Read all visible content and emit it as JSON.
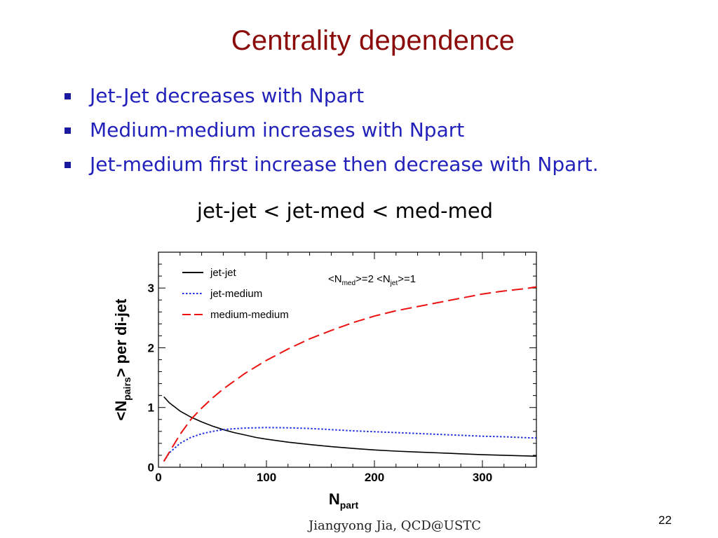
{
  "slide": {
    "title": "Centrality dependence",
    "bullets": [
      "Jet-Jet decreases with Npart",
      "Medium-medium increases with Npart",
      "Jet-medium first increase then decrease with Npart."
    ],
    "relation": "jet-jet < jet-med < med-med",
    "footer": "Jiangyong Jia,  QCD@USTC",
    "page_number": "22"
  },
  "chart_data": {
    "type": "line",
    "xlabel": "N",
    "xlabel_sub": "part",
    "ylabel": "<N",
    "ylabel_sub": "pairs",
    "ylabel_rest": "> per di-jet",
    "annotation": {
      "part1": "<N",
      "sub1": "med",
      "part2": ">=2  <N",
      "sub2": "jet",
      "part3": ">=1"
    },
    "xlim": [
      0,
      350
    ],
    "ylim": [
      0,
      3.6
    ],
    "xticks": [
      0,
      100,
      200,
      300
    ],
    "yticks": [
      0,
      1,
      2,
      3
    ],
    "grid": false,
    "legend": "top-left",
    "series": [
      {
        "name": "jet-jet",
        "color": "#000000",
        "style": "solid",
        "x": [
          5,
          10,
          20,
          30,
          40,
          50,
          60,
          70,
          80,
          90,
          100,
          120,
          140,
          160,
          180,
          200,
          220,
          240,
          260,
          280,
          300,
          320,
          340,
          350
        ],
        "y": [
          1.18,
          1.08,
          0.94,
          0.84,
          0.76,
          0.69,
          0.63,
          0.58,
          0.54,
          0.5,
          0.47,
          0.42,
          0.38,
          0.345,
          0.315,
          0.29,
          0.27,
          0.255,
          0.24,
          0.225,
          0.21,
          0.2,
          0.19,
          0.185
        ]
      },
      {
        "name": "jet-medium",
        "color": "#2233dd",
        "style": "dotted",
        "x": [
          5,
          10,
          20,
          30,
          40,
          50,
          60,
          70,
          80,
          90,
          100,
          120,
          140,
          160,
          180,
          200,
          220,
          240,
          260,
          280,
          300,
          320,
          340,
          350
        ],
        "y": [
          0.1,
          0.24,
          0.4,
          0.5,
          0.56,
          0.6,
          0.63,
          0.645,
          0.655,
          0.66,
          0.665,
          0.66,
          0.65,
          0.63,
          0.61,
          0.595,
          0.58,
          0.565,
          0.55,
          0.535,
          0.52,
          0.51,
          0.495,
          0.49
        ]
      },
      {
        "name": "medium-medium",
        "color": "#ee1111",
        "style": "dashed",
        "x": [
          5,
          10,
          20,
          30,
          40,
          50,
          60,
          80,
          100,
          120,
          140,
          160,
          180,
          200,
          220,
          240,
          260,
          280,
          300,
          320,
          340,
          350
        ],
        "y": [
          0.1,
          0.25,
          0.55,
          0.8,
          0.99,
          1.16,
          1.31,
          1.57,
          1.79,
          1.98,
          2.15,
          2.29,
          2.42,
          2.53,
          2.62,
          2.69,
          2.76,
          2.83,
          2.9,
          2.95,
          2.99,
          3.02
        ]
      }
    ]
  }
}
